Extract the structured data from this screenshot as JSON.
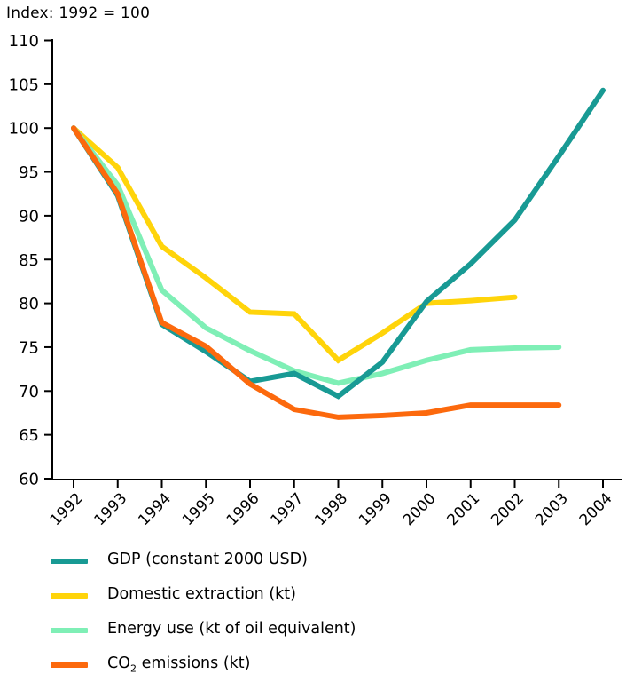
{
  "header": {
    "title": "Index: 1992 = 100"
  },
  "chart_data": {
    "type": "line",
    "title": "Index: 1992 = 100",
    "grid": false,
    "legend_position": "bottom-left",
    "ylim": [
      60,
      110
    ],
    "yticks": [
      60,
      65,
      70,
      75,
      80,
      85,
      90,
      95,
      100,
      105,
      110
    ],
    "xticks": [
      1992,
      1993,
      1994,
      1995,
      1996,
      1997,
      1998,
      1999,
      2000,
      2001,
      2002,
      2003,
      2004
    ],
    "series": [
      {
        "name": "gdp",
        "label": "GDP (constant 2000 USD)",
        "color": "#189a94",
        "x": [
          1992,
          1993,
          1994,
          1995,
          1996,
          1997,
          1998,
          1999,
          2000,
          2001,
          2002,
          2003,
          2004
        ],
        "values": [
          100,
          92.3,
          77.6,
          74.5,
          71.1,
          72.0,
          69.4,
          73.3,
          80.2,
          84.5,
          89.5,
          96.8,
          104.3
        ]
      },
      {
        "name": "domestic-extraction",
        "label": "Domestic extraction (kt)",
        "color": "#ffd40a",
        "x": [
          1992,
          1993,
          1994,
          1995,
          1996,
          1997,
          1998,
          1999,
          2000,
          2001,
          2002
        ],
        "values": [
          100,
          95.5,
          86.5,
          82.9,
          79.0,
          78.8,
          73.5,
          76.6,
          80.0,
          80.3,
          80.7
        ]
      },
      {
        "name": "energy-use",
        "label": "Energy use (kt of oil equivalent)",
        "color": "#7fefb6",
        "x": [
          1992,
          1993,
          1994,
          1995,
          1996,
          1997,
          1998,
          1999,
          2000,
          2001,
          2002,
          2003
        ],
        "values": [
          100,
          93.5,
          81.5,
          77.2,
          74.6,
          72.3,
          70.9,
          72.0,
          73.5,
          74.7,
          74.9,
          75.0
        ]
      },
      {
        "name": "co2-emissions",
        "label": "CO2 emissions (kt)",
        "color": "#fc690d",
        "x": [
          1992,
          1993,
          1994,
          1995,
          1996,
          1997,
          1998,
          1999,
          2000,
          2001,
          2002,
          2003
        ],
        "values": [
          100,
          92.5,
          77.8,
          75.1,
          70.8,
          67.9,
          67.0,
          67.2,
          67.5,
          68.4,
          68.4,
          68.4
        ]
      }
    ]
  },
  "legend": {
    "items": [
      {
        "pre": "GDP (constant 2000 USD)",
        "sub": "",
        "post": ""
      },
      {
        "pre": "Domestic extraction (kt)",
        "sub": "",
        "post": ""
      },
      {
        "pre": "Energy use (kt of oil equivalent)",
        "sub": "",
        "post": ""
      },
      {
        "pre": "CO",
        "sub": "2",
        "post": " emissions (kt)"
      }
    ]
  }
}
